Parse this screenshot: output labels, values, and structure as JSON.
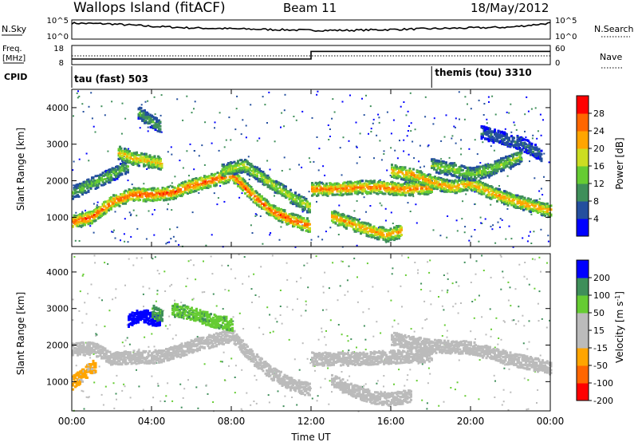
{
  "header": {
    "station": "Wallops Island (fitACF)",
    "beam": "Beam 11",
    "date": "18/May/2012"
  },
  "top_panels": {
    "nsky_label": "N.Sky",
    "nsky_ticks": [
      "10^5",
      "10^0"
    ],
    "nsearch_label": "N.Search",
    "nsearch_ticks": [
      "10^5",
      "10^0"
    ],
    "freq_label": "Freq.",
    "freq_unit": "[MHz]",
    "freq_ticks": [
      "18",
      "8"
    ],
    "nave_label": "Nave",
    "nave_ticks": [
      "60",
      "0"
    ],
    "cpid_label": "CPID",
    "cpid_segments": [
      {
        "label": "tau (fast) 503",
        "start_hour": 0,
        "end_hour": 18.05
      },
      {
        "label": "themis (tou) 3310",
        "start_hour": 18.05,
        "end_hour": 24
      }
    ]
  },
  "colors": {
    "power_scale": [
      "#0000ff",
      "#244f9e",
      "#3f8f5a",
      "#66cc33",
      "#ccdd22",
      "#ffa500",
      "#ff6600",
      "#ff0000"
    ],
    "velocity_scale": [
      "#ff0000",
      "#ff6600",
      "#ffa500",
      "#bbbbbb",
      "#bbbbbb",
      "#66cc33",
      "#3f8f5a",
      "#0000ff"
    ],
    "ground_scatter": "#bbbbbb"
  },
  "chart_data": [
    {
      "type": "heatmap",
      "name": "power",
      "xlabel": "",
      "ylabel": "Slant Range [km]",
      "xlim": [
        0,
        24
      ],
      "ylim": [
        200,
        4500
      ],
      "y_ticks": [
        "1000",
        "2000",
        "3000",
        "4000"
      ],
      "colorbar_label": "Power [dB]",
      "colorbar_ticks": [
        "4",
        "8",
        "12",
        "16",
        "20",
        "24",
        "28"
      ],
      "colorbar_range": [
        0,
        32
      ],
      "traces": [
        {
          "hours": [
            0,
            1,
            2,
            3,
            4,
            5,
            6,
            7,
            8,
            9,
            10,
            11,
            11.9
          ],
          "range_km": [
            900,
            1050,
            1450,
            1650,
            1650,
            1700,
            1900,
            2050,
            2200,
            1650,
            1200,
            950,
            800
          ],
          "peak_db": 28
        },
        {
          "hours": [
            0,
            1,
            2,
            2.8
          ],
          "range_km": [
            1700,
            1950,
            2200,
            2450
          ],
          "peak_db": 14
        },
        {
          "hours": [
            2.3,
            3,
            4,
            4.5
          ],
          "range_km": [
            2800,
            2650,
            2550,
            2500
          ],
          "peak_db": 22
        },
        {
          "hours": [
            3.3,
            3.8,
            4.4
          ],
          "range_km": [
            3900,
            3700,
            3500
          ],
          "peak_db": 12
        },
        {
          "hours": [
            7.5,
            8.6,
            9.7,
            10.8,
            11.9
          ],
          "range_km": [
            2300,
            2450,
            2050,
            1650,
            1300
          ],
          "peak_db": 18
        },
        {
          "hours": [
            12,
            13,
            14.5,
            15.5,
            16.5,
            18
          ],
          "range_km": [
            1800,
            1800,
            1850,
            1850,
            1800,
            1850
          ],
          "peak_db": 26
        },
        {
          "hours": [
            13,
            14,
            15,
            15.8,
            16.5
          ],
          "range_km": [
            1050,
            850,
            650,
            550,
            650
          ],
          "peak_db": 24
        },
        {
          "hours": [
            16,
            17,
            18,
            19,
            20,
            21,
            22,
            23,
            24
          ],
          "range_km": [
            2300,
            2200,
            2000,
            1850,
            1950,
            1700,
            1500,
            1350,
            1200
          ],
          "peak_db": 24
        },
        {
          "hours": [
            18,
            19,
            20,
            21,
            22.5
          ],
          "range_km": [
            2450,
            2350,
            2200,
            2350,
            2700
          ],
          "peak_db": 16
        },
        {
          "hours": [
            20.5,
            21.5,
            22.5,
            23.5
          ],
          "range_km": [
            3350,
            3200,
            3050,
            2750
          ],
          "peak_db": 8
        }
      ]
    },
    {
      "type": "heatmap",
      "name": "velocity",
      "xlabel": "Time UT",
      "ylabel": "Slant Range [km]",
      "xlim": [
        0,
        24
      ],
      "ylim": [
        200,
        4500
      ],
      "x_ticks": [
        "00:00",
        "04:00",
        "08:00",
        "12:00",
        "16:00",
        "20:00",
        "00:00"
      ],
      "y_ticks": [
        "1000",
        "2000",
        "3000",
        "4000"
      ],
      "colorbar_label": "Velocity [m s",
      "colorbar_label_sup": "-1",
      "colorbar_label_end": "]",
      "colorbar_ticks": [
        "200",
        "100",
        "50",
        "15",
        "-15",
        "-50",
        "-100",
        "-200"
      ],
      "traces": [
        {
          "hours": [
            0,
            1,
            2,
            3,
            4,
            5,
            6,
            7,
            8,
            9,
            10,
            11,
            11.9
          ],
          "range_km": [
            1900,
            1950,
            1650,
            1700,
            1700,
            1800,
            2000,
            2150,
            2300,
            1700,
            1250,
            950,
            800
          ],
          "velocity": 0
        },
        {
          "hours": [
            0,
            0.6,
            1.2
          ],
          "range_km": [
            1000,
            1250,
            1500
          ],
          "velocity": -60
        },
        {
          "hours": [
            2.8,
            3.4,
            4,
            4.4
          ],
          "range_km": [
            2700,
            2850,
            2750,
            2700
          ],
          "velocity": 200
        },
        {
          "hours": [
            4,
            4.5
          ],
          "range_km": [
            2950,
            2800
          ],
          "velocity": 60
        },
        {
          "hours": [
            12,
            14,
            16,
            18
          ],
          "range_km": [
            1650,
            1650,
            1700,
            1750
          ],
          "velocity": 0
        },
        {
          "hours": [
            13,
            14,
            15,
            16,
            17
          ],
          "range_km": [
            1050,
            800,
            600,
            550,
            650
          ],
          "velocity": 0
        },
        {
          "hours": [
            16,
            18,
            20,
            22,
            24
          ],
          "range_km": [
            2200,
            2000,
            1950,
            1650,
            1400
          ],
          "velocity": 0
        },
        {
          "hours": [
            5,
            6,
            7,
            8
          ],
          "range_km": [
            3000,
            2900,
            2700,
            2600
          ],
          "velocity": 40
        }
      ]
    },
    {
      "type": "line",
      "name": "n_sky",
      "x": [
        0,
        2,
        4,
        6,
        8,
        10,
        12,
        14,
        16,
        18,
        20,
        22,
        24
      ],
      "y": [
        0.9,
        0.85,
        0.7,
        0.6,
        0.55,
        0.5,
        0.45,
        0.45,
        0.5,
        0.55,
        0.6,
        0.65,
        0.9
      ]
    },
    {
      "type": "line",
      "name": "freq_nave",
      "x": [
        0,
        12,
        12,
        24
      ],
      "y": [
        10.5,
        10.5,
        15.3,
        15.3
      ],
      "nave_level_fraction": 0.45
    }
  ]
}
